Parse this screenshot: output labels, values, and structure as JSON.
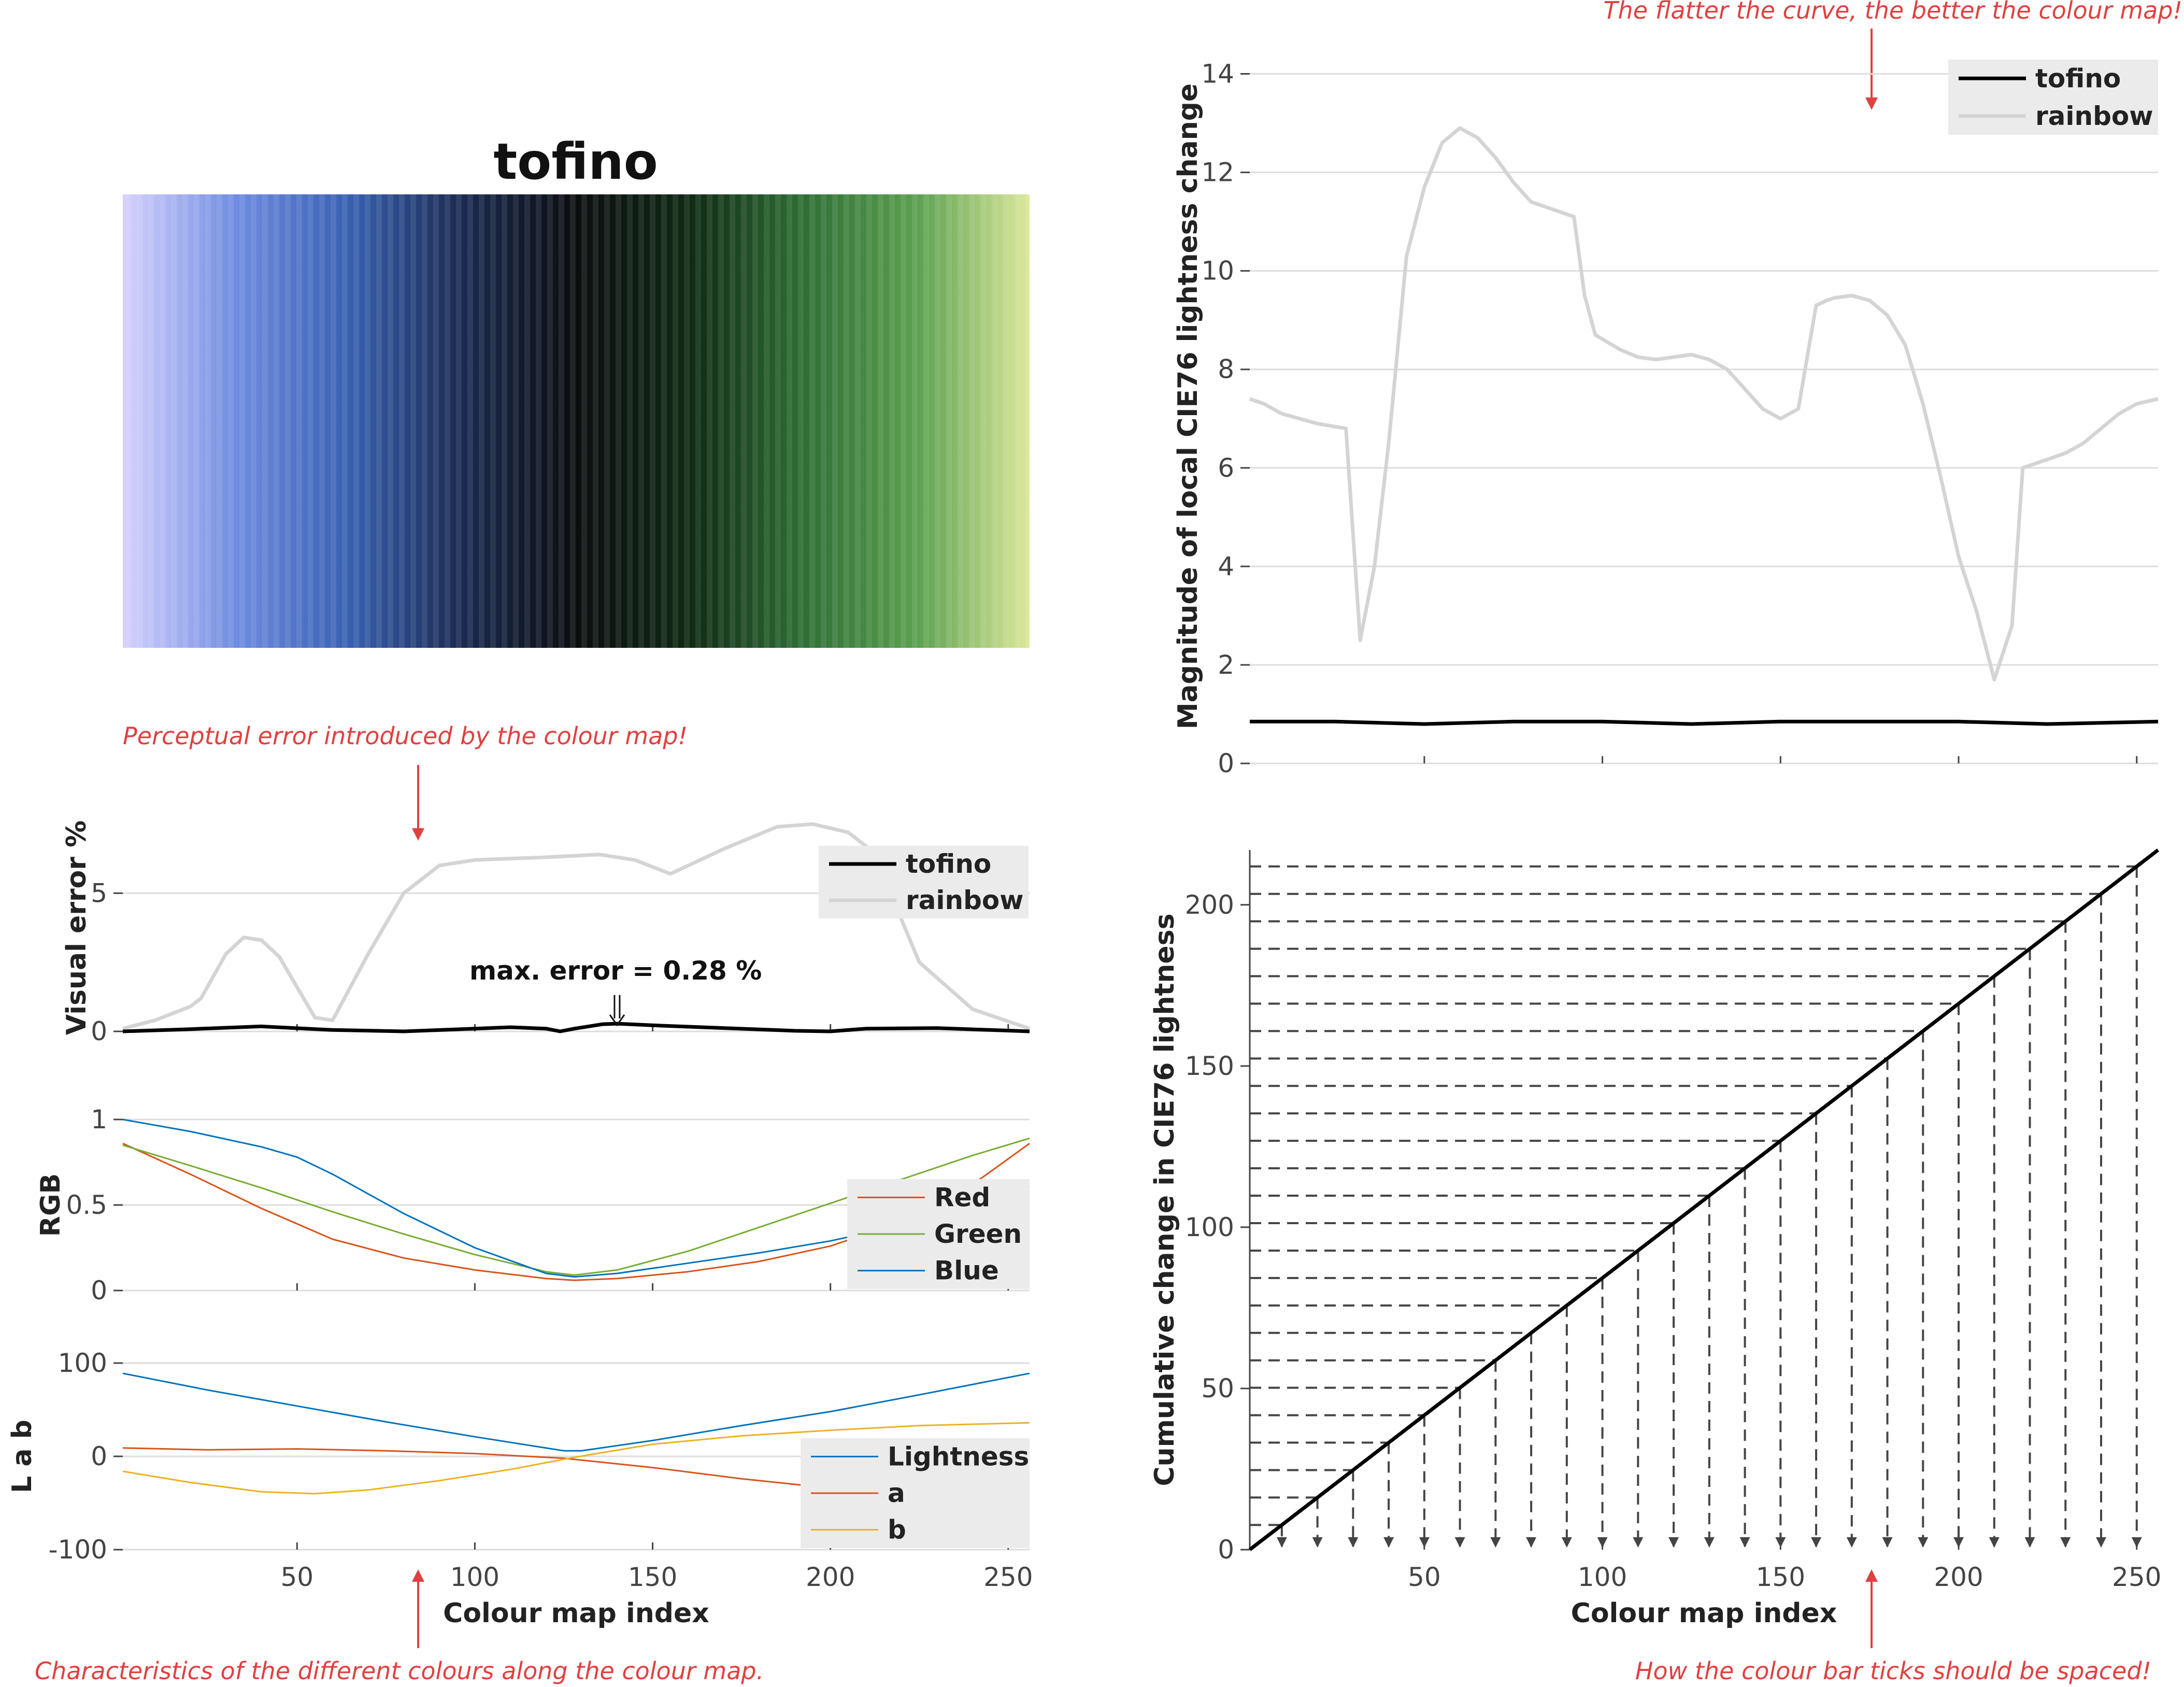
{
  "colours": {
    "tofino": "#000000",
    "rainbow": "#d4d4d4",
    "red": "#d95319",
    "green": "#77ac30",
    "blue": "#0072bd",
    "lightness": "#0072bd",
    "a": "#d95319",
    "b": "#edb120",
    "annotation": "#e04040",
    "grid": "#dddddd",
    "legend_bg": "#ebebeb",
    "stops": [
      "#d6d2fe",
      "#6e8ce0",
      "#3860b0",
      "#1a2a50",
      "#0b0e10",
      "#0f2a14",
      "#2e6e34",
      "#5aa050",
      "#dbe898"
    ]
  },
  "colourbar": {
    "title": "tofino"
  },
  "annotations": {
    "perceptual": "Perceptual error introduced by the colour map!",
    "flatter": "The flatter the curve, the better the colour map!",
    "characteristics": "Characteristics of the different colours along the colour map.",
    "ticks": "How the colour bar ticks should be spaced!"
  },
  "chart_data": [
    {
      "type": "line",
      "title": "",
      "xlabel": "",
      "ylabel": "Visual error %",
      "xlim": [
        1,
        256
      ],
      "ylim": [
        0,
        7.5
      ],
      "yticks": [
        0,
        5
      ],
      "grid": true,
      "legend_position": "top-right",
      "annotation": "max. error =  0.28 %",
      "series": [
        {
          "name": "tofino",
          "x": [
            1,
            20,
            40,
            60,
            80,
            100,
            110,
            120,
            124,
            128,
            136,
            140,
            150,
            170,
            190,
            200,
            210,
            230,
            256
          ],
          "y": [
            0.0,
            0.08,
            0.18,
            0.05,
            0.0,
            0.1,
            0.15,
            0.1,
            0.0,
            0.1,
            0.26,
            0.28,
            0.22,
            0.12,
            0.02,
            0.0,
            0.1,
            0.12,
            0.0
          ]
        },
        {
          "name": "rainbow",
          "x": [
            1,
            10,
            20,
            23,
            30,
            35,
            40,
            45,
            55,
            60,
            70,
            80,
            90,
            100,
            120,
            135,
            145,
            155,
            170,
            185,
            195,
            205,
            212,
            225,
            240,
            256
          ],
          "y": [
            0.1,
            0.4,
            0.9,
            1.2,
            2.8,
            3.4,
            3.3,
            2.7,
            0.5,
            0.4,
            2.8,
            5.0,
            6.0,
            6.2,
            6.3,
            6.4,
            6.2,
            5.7,
            6.6,
            7.4,
            7.5,
            7.2,
            6.5,
            2.5,
            0.8,
            0.1
          ]
        }
      ]
    },
    {
      "type": "line",
      "title": "",
      "xlabel": "",
      "ylabel": "RGB",
      "xlim": [
        1,
        256
      ],
      "ylim": [
        0,
        1
      ],
      "yticks": [
        0,
        0.5,
        1
      ],
      "grid": true,
      "legend_position": "right",
      "series": [
        {
          "name": "Red",
          "x": [
            1,
            20,
            40,
            60,
            80,
            100,
            120,
            128,
            140,
            160,
            180,
            200,
            220,
            240,
            256
          ],
          "y": [
            0.86,
            0.68,
            0.48,
            0.3,
            0.19,
            0.12,
            0.07,
            0.06,
            0.07,
            0.11,
            0.17,
            0.26,
            0.4,
            0.62,
            0.86
          ]
        },
        {
          "name": "Green",
          "x": [
            1,
            20,
            40,
            60,
            80,
            100,
            120,
            128,
            140,
            160,
            180,
            200,
            220,
            240,
            256
          ],
          "y": [
            0.85,
            0.73,
            0.6,
            0.46,
            0.33,
            0.21,
            0.11,
            0.09,
            0.12,
            0.23,
            0.37,
            0.51,
            0.65,
            0.79,
            0.89
          ]
        },
        {
          "name": "Blue",
          "x": [
            1,
            20,
            40,
            50,
            60,
            80,
            100,
            120,
            128,
            140,
            160,
            180,
            200,
            220,
            240,
            256
          ],
          "y": [
            1.0,
            0.93,
            0.84,
            0.78,
            0.68,
            0.45,
            0.25,
            0.1,
            0.08,
            0.1,
            0.16,
            0.22,
            0.29,
            0.38,
            0.49,
            0.61
          ]
        }
      ]
    },
    {
      "type": "line",
      "title": "",
      "xlabel": "Colour map index",
      "ylabel": "L a b",
      "xlim": [
        1,
        256
      ],
      "ylim": [
        -100,
        100
      ],
      "yticks": [
        -100,
        0,
        100
      ],
      "xticks": [
        50,
        100,
        150,
        200,
        250
      ],
      "grid": true,
      "legend_position": "bottom-right",
      "series": [
        {
          "name": "Lightness",
          "x": [
            1,
            25,
            50,
            75,
            100,
            125,
            130,
            150,
            175,
            200,
            225,
            256
          ],
          "y": [
            89,
            71,
            54,
            37,
            21,
            6,
            6,
            17,
            33,
            48,
            66,
            89
          ]
        },
        {
          "name": "a",
          "x": [
            1,
            25,
            50,
            75,
            100,
            125,
            150,
            175,
            200,
            225,
            256
          ],
          "y": [
            9,
            7,
            8,
            6,
            3,
            -2,
            -12,
            -24,
            -34,
            -33,
            -18
          ]
        },
        {
          "name": "b",
          "x": [
            1,
            20,
            40,
            55,
            70,
            90,
            110,
            128,
            150,
            175,
            200,
            225,
            256
          ],
          "y": [
            -16,
            -28,
            -38,
            -40,
            -36,
            -26,
            -14,
            -1,
            13,
            22,
            28,
            33,
            36
          ]
        }
      ]
    },
    {
      "type": "line",
      "title": "",
      "xlabel": "",
      "ylabel": "Magnitude of local CIE76 lightness change",
      "xlim": [
        1,
        256
      ],
      "ylim": [
        0,
        14.5
      ],
      "yticks": [
        0,
        2,
        4,
        6,
        8,
        10,
        12,
        14
      ],
      "grid": true,
      "legend_position": "top-right",
      "series": [
        {
          "name": "tofino",
          "x": [
            1,
            25,
            50,
            75,
            100,
            125,
            150,
            175,
            200,
            225,
            256
          ],
          "y": [
            0.85,
            0.85,
            0.8,
            0.85,
            0.85,
            0.8,
            0.85,
            0.85,
            0.85,
            0.8,
            0.85
          ]
        },
        {
          "name": "rainbow",
          "x": [
            1,
            5,
            10,
            20,
            28,
            32,
            36,
            40,
            45,
            50,
            55,
            60,
            65,
            70,
            75,
            80,
            92,
            95,
            98,
            105,
            110,
            115,
            120,
            125,
            130,
            135,
            140,
            145,
            150,
            155,
            160,
            163,
            165,
            170,
            175,
            180,
            185,
            190,
            195,
            200,
            205,
            210,
            215,
            218,
            222,
            226,
            230,
            235,
            240,
            245,
            250,
            256
          ],
          "y": [
            7.4,
            7.3,
            7.1,
            6.9,
            6.8,
            2.5,
            4.0,
            6.5,
            10.3,
            11.7,
            12.6,
            12.9,
            12.7,
            12.3,
            11.8,
            11.4,
            11.1,
            9.5,
            8.7,
            8.4,
            8.25,
            8.2,
            8.25,
            8.3,
            8.2,
            8.0,
            7.6,
            7.2,
            7.0,
            7.2,
            9.3,
            9.4,
            9.45,
            9.5,
            9.4,
            9.1,
            8.5,
            7.3,
            5.8,
            4.2,
            3.1,
            1.7,
            2.8,
            6.0,
            6.1,
            6.2,
            6.3,
            6.5,
            6.8,
            7.1,
            7.3,
            7.4
          ]
        }
      ]
    },
    {
      "type": "line",
      "title": "",
      "xlabel": "Colour map index",
      "ylabel": "Cumulative change in CIE76 lightness",
      "xlim": [
        1,
        256
      ],
      "ylim": [
        0,
        217
      ],
      "yticks": [
        0,
        50,
        100,
        150,
        200
      ],
      "xticks": [
        50,
        100,
        150,
        200,
        250
      ],
      "grid": false,
      "series": [
        {
          "name": "",
          "x": [
            1,
            256
          ],
          "y": [
            0,
            217
          ]
        }
      ],
      "tick_guides": [
        10,
        20,
        30,
        40,
        50,
        60,
        70,
        80,
        90,
        100,
        110,
        120,
        130,
        140,
        150,
        160,
        170,
        180,
        190,
        200,
        210,
        220,
        230,
        240,
        250
      ]
    }
  ]
}
